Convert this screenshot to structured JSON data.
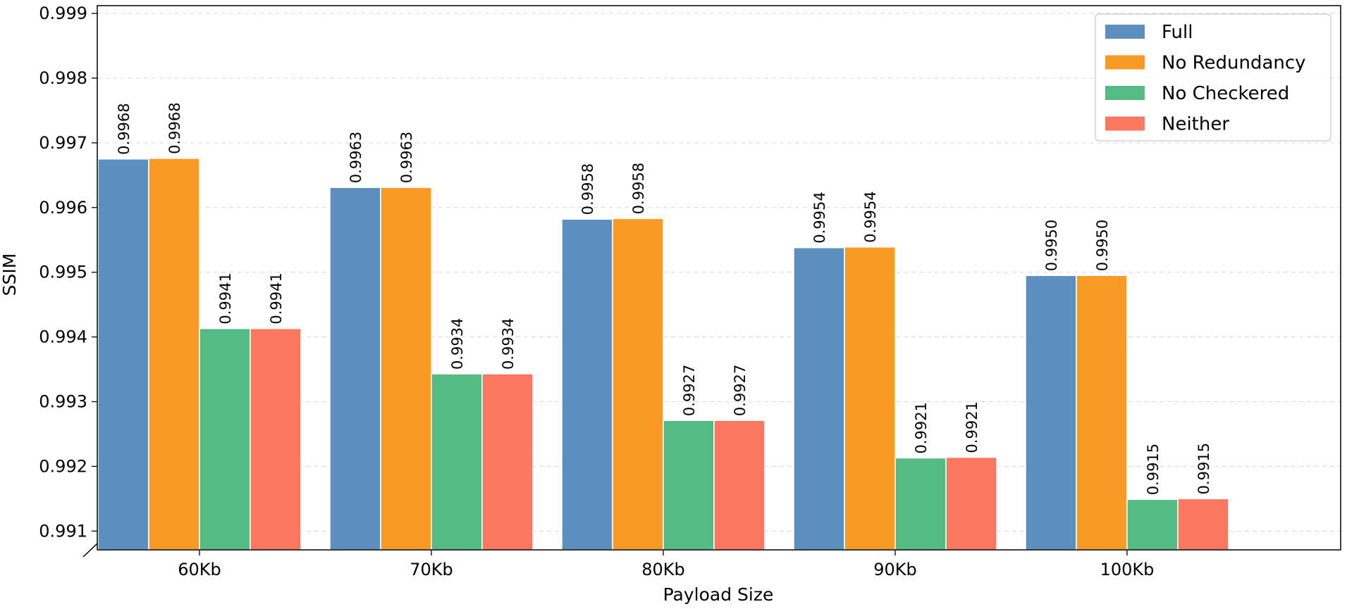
{
  "chart_data": {
    "type": "bar",
    "title": "",
    "xlabel": "Payload Size",
    "ylabel": "SSIM",
    "categories": [
      "60Kb",
      "70Kb",
      "80Kb",
      "90Kb",
      "100Kb"
    ],
    "ylim": [
      0.99071,
      0.99912
    ],
    "yticks": [
      "0.991",
      "0.992",
      "0.993",
      "0.994",
      "0.995",
      "0.996",
      "0.997",
      "0.998",
      "0.999"
    ],
    "grid": "horizontal-dashed",
    "legend_position": "top-right",
    "axis_break": "bottom-left",
    "series": [
      {
        "name": "Full",
        "color": "#5b8fc0",
        "values": [
          0.99675,
          0.99631,
          0.99582,
          0.99538,
          0.99495
        ],
        "labels": [
          "0.9968",
          "0.9963",
          "0.9958",
          "0.9954",
          "0.9950"
        ]
      },
      {
        "name": "No Redundancy",
        "color": "#fa9a26",
        "values": [
          0.99676,
          0.99631,
          0.99583,
          0.99539,
          0.99495
        ],
        "labels": [
          "0.9968",
          "0.9963",
          "0.9958",
          "0.9954",
          "0.9950"
        ]
      },
      {
        "name": "No Checkered",
        "color": "#54bb84",
        "values": [
          0.99413,
          0.99343,
          0.99271,
          0.99213,
          0.99149
        ],
        "labels": [
          "0.9941",
          "0.9934",
          "0.9927",
          "0.9921",
          "0.9915"
        ]
      },
      {
        "name": "Neither",
        "color": "#fd7660",
        "values": [
          0.99413,
          0.99343,
          0.99271,
          0.99214,
          0.9915
        ],
        "labels": [
          "0.9941",
          "0.9934",
          "0.9927",
          "0.9921",
          "0.9915"
        ]
      }
    ]
  }
}
